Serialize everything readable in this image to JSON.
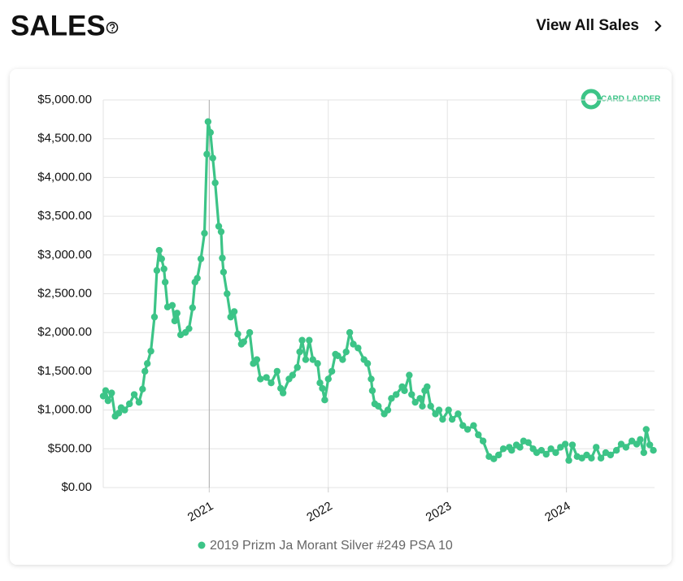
{
  "header": {
    "title": "SALES",
    "link": "View All Sales"
  },
  "logo": "CARD LADDER",
  "chart_data": {
    "type": "line",
    "x": [
      2020.11,
      2020.13,
      2020.15,
      2020.18,
      2020.21,
      2020.24,
      2020.26,
      2020.29,
      2020.33,
      2020.37,
      2020.41,
      2020.44,
      2020.46,
      2020.48,
      2020.51,
      2020.54,
      2020.56,
      2020.58,
      2020.6,
      2020.62,
      2020.63,
      2020.65,
      2020.69,
      2020.71,
      2020.73,
      2020.76,
      2020.8,
      2020.83,
      2020.86,
      2020.88,
      2020.9,
      2020.93,
      2020.96,
      2020.98,
      2020.99,
      2021.01,
      2021.03,
      2021.05,
      2021.08,
      2021.1,
      2021.11,
      2021.12,
      2021.15,
      2021.18,
      2021.21,
      2021.24,
      2021.27,
      2021.29,
      2021.34,
      2021.37,
      2021.4,
      2021.43,
      2021.48,
      2021.52,
      2021.57,
      2021.6,
      2021.62,
      2021.67,
      2021.7,
      2021.74,
      2021.76,
      2021.78,
      2021.81,
      2021.84,
      2021.87,
      2021.91,
      2021.93,
      2021.95,
      2021.97,
      2022.0,
      2022.03,
      2022.06,
      2022.08,
      2022.12,
      2022.15,
      2022.18,
      2022.21,
      2022.25,
      2022.3,
      2022.33,
      2022.36,
      2022.37,
      2022.39,
      2022.42,
      2022.47,
      2022.5,
      2022.53,
      2022.57,
      2022.62,
      2022.64,
      2022.68,
      2022.7,
      2022.73,
      2022.77,
      2022.79,
      2022.81,
      2022.83,
      2022.86,
      2022.9,
      2022.93,
      2022.96,
      2023.01,
      2023.04,
      2023.09,
      2023.13,
      2023.17,
      2023.22,
      2023.26,
      2023.3,
      2023.35,
      2023.39,
      2023.43,
      2023.47,
      2023.52,
      2023.54,
      2023.58,
      2023.61,
      2023.64,
      2023.68,
      2023.72,
      2023.75,
      2023.79,
      2023.83,
      2023.87,
      2023.91,
      2023.95,
      2023.99,
      2024.02,
      2024.05,
      2024.09,
      2024.13,
      2024.17,
      2024.21,
      2024.25,
      2024.29,
      2024.33,
      2024.37,
      2024.42,
      2024.46,
      2024.5,
      2024.55,
      2024.59,
      2024.62,
      2024.65,
      2024.67,
      2024.7,
      2024.73
    ],
    "series": [
      {
        "name": "2019 Prizm Ja Morant Silver #249 PSA 10",
        "color": "#3cc487",
        "values": [
          1180,
          1250,
          1120,
          1220,
          920,
          960,
          1030,
          1000,
          1080,
          1200,
          1100,
          1270,
          1500,
          1600,
          1760,
          2200,
          2800,
          3060,
          2950,
          2820,
          2650,
          2330,
          2350,
          2150,
          2250,
          1970,
          2000,
          2050,
          2320,
          2650,
          2700,
          2950,
          3280,
          4300,
          4720,
          4580,
          4250,
          3930,
          3370,
          3300,
          2960,
          2780,
          2500,
          2200,
          2270,
          1980,
          1850,
          1880,
          2000,
          1600,
          1650,
          1400,
          1420,
          1350,
          1500,
          1280,
          1220,
          1400,
          1450,
          1550,
          1750,
          1900,
          1650,
          1900,
          1650,
          1600,
          1350,
          1280,
          1130,
          1400,
          1500,
          1720,
          1700,
          1650,
          1750,
          2000,
          1850,
          1800,
          1650,
          1600,
          1400,
          1250,
          1080,
          1050,
          950,
          1000,
          1150,
          1200,
          1300,
          1250,
          1450,
          1200,
          1100,
          1150,
          1050,
          1250,
          1300,
          1050,
          950,
          1000,
          880,
          1000,
          880,
          950,
          800,
          750,
          800,
          680,
          600,
          400,
          370,
          420,
          500,
          520,
          480,
          550,
          520,
          600,
          580,
          500,
          450,
          480,
          430,
          500,
          450,
          520,
          560,
          350,
          550,
          400,
          380,
          420,
          380,
          520,
          380,
          450,
          420,
          480,
          560,
          520,
          600,
          560,
          620,
          450,
          750,
          550,
          480
        ]
      }
    ],
    "xlim": [
      2020.11,
      2024.74
    ],
    "xticks": [
      2021,
      2022,
      2023,
      2024
    ],
    "ylim": [
      0,
      5000
    ],
    "yticks": [
      {
        "value": 0,
        "label": "$0.00"
      },
      {
        "value": 500,
        "label": "$500.00"
      },
      {
        "value": 1000,
        "label": "$1,000.00"
      },
      {
        "value": 1500,
        "label": "$1,500.00"
      },
      {
        "value": 2000,
        "label": "$2,000.00"
      },
      {
        "value": 2500,
        "label": "$2,500.00"
      },
      {
        "value": 3000,
        "label": "$3,000.00"
      },
      {
        "value": 3500,
        "label": "$3,500.00"
      },
      {
        "value": 4000,
        "label": "$4,000.00"
      },
      {
        "value": 4500,
        "label": "$4,500.00"
      },
      {
        "value": 5000,
        "label": "$5,000.00"
      }
    ],
    "grid": true,
    "legend": "bottom"
  }
}
